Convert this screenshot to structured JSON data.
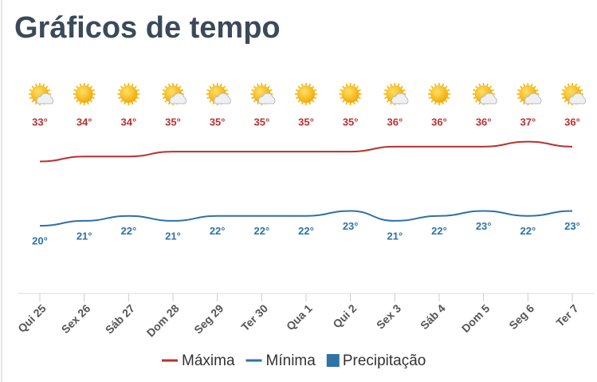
{
  "title": "Gráficos de tempo",
  "chart_data": {
    "type": "line",
    "categories": [
      "Qui 25",
      "Sex 26",
      "Sáb 27",
      "Dom 28",
      "Seg 29",
      "Ter 30",
      "Qua 1",
      "Qui 2",
      "Sex 3",
      "Sáb 4",
      "Dom 5",
      "Seg 6",
      "Ter 7"
    ],
    "icons": [
      "sun-cloud",
      "sun",
      "sun",
      "sun-cloud",
      "sun-cloud",
      "sun-cloud",
      "sun",
      "sun",
      "sun-cloud",
      "sun",
      "sun-cloud",
      "sun-cloud",
      "sun-cloud"
    ],
    "ylim": [
      6,
      50
    ],
    "series": [
      {
        "name": "Máxima",
        "color": "#b8312f",
        "values": [
          33,
          34,
          34,
          35,
          35,
          35,
          35,
          35,
          36,
          36,
          36,
          37,
          36
        ],
        "value_labels": [
          "33°",
          "34°",
          "34°",
          "35°",
          "35°",
          "35°",
          "35°",
          "35°",
          "36°",
          "36°",
          "36°",
          "37°",
          "36°"
        ]
      },
      {
        "name": "Mínima",
        "color": "#2e72a6",
        "values": [
          20,
          21,
          22,
          21,
          22,
          22,
          22,
          23,
          21,
          22,
          23,
          22,
          23
        ],
        "value_labels": [
          "20°",
          "21°",
          "22°",
          "21°",
          "22°",
          "22°",
          "22°",
          "23°",
          "21°",
          "22°",
          "23°",
          "22°",
          "23°"
        ]
      },
      {
        "name": "Precipitação",
        "color": "#2e72a6",
        "values": [
          null,
          null,
          null,
          null,
          null,
          null,
          null,
          null,
          null,
          null,
          null,
          null,
          null
        ]
      }
    ]
  }
}
